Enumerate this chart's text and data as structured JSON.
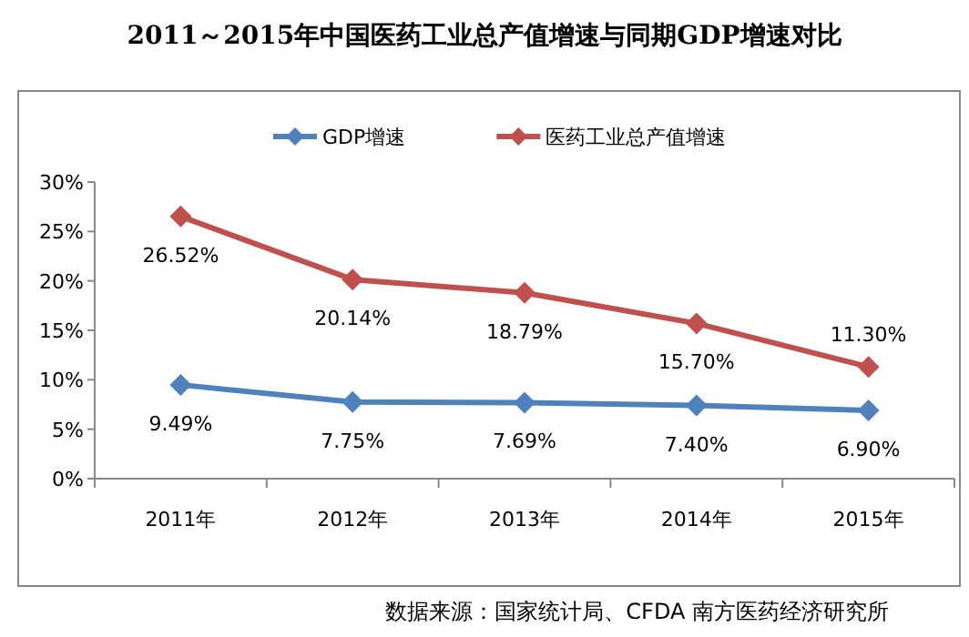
{
  "chart_data": {
    "type": "line",
    "title": "2011～2015年中国医药工业总产值增速与同期GDP增速对比",
    "categories": [
      "2011年",
      "2012年",
      "2013年",
      "2014年",
      "2015年"
    ],
    "series": [
      {
        "name": "GDP增速",
        "color": "#4f81bd",
        "values": [
          9.49,
          7.75,
          7.69,
          7.4,
          6.9
        ],
        "value_labels": [
          "9.49%",
          "7.75%",
          "7.69%",
          "7.40%",
          "6.90%"
        ]
      },
      {
        "name": "医药工业总产值增速",
        "color": "#c0504d",
        "values": [
          26.52,
          20.14,
          18.79,
          15.7,
          11.3
        ],
        "value_labels": [
          "26.52%",
          "20.14%",
          "18.79%",
          "15.70%",
          "11.30%"
        ]
      }
    ],
    "ylim": [
      0,
      30
    ],
    "yticks": [
      {
        "value": 0,
        "label": "0%"
      },
      {
        "value": 5,
        "label": "5%"
      },
      {
        "value": 10,
        "label": "10%"
      },
      {
        "value": 15,
        "label": "15%"
      },
      {
        "value": 20,
        "label": "20%"
      },
      {
        "value": 25,
        "label": "25%"
      },
      {
        "value": 30,
        "label": "30%"
      }
    ],
    "marker": "diamond",
    "line_style": "solid",
    "legend": "top",
    "grid": false,
    "annotations": [
      "数据来源：国家统计局、CFDA 南方医药经济研究所"
    ]
  }
}
